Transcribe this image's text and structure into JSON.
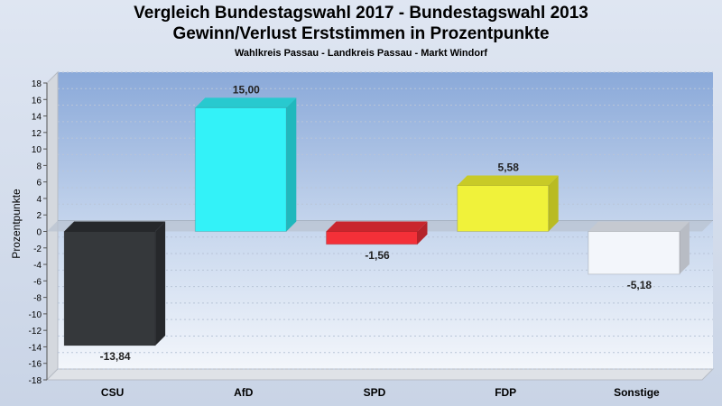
{
  "header": {
    "title": "Vergleich Bundestagswahl 2017 - Bundestagswahl 2013",
    "subtitle": "Gewinn/Verlust Erststimmen in Prozentpunkte",
    "caption": "Wahlkreis Passau - Landkreis Passau - Markt Windorf"
  },
  "chart_data": {
    "type": "bar",
    "title": "Vergleich Bundestagswahl 2017 - Bundestagswahl 2013",
    "subtitle": "Gewinn/Verlust Erststimmen in Prozentpunkte",
    "ylabel": "Prozentpunkte",
    "xlabel": "",
    "categories": [
      "CSU",
      "AfD",
      "SPD",
      "FDP",
      "Sonstige"
    ],
    "values": [
      -13.84,
      15.0,
      -1.56,
      5.58,
      -5.18
    ],
    "value_labels": [
      "-13,84",
      "15,00",
      "-1,56",
      "5,58",
      "-5,18"
    ],
    "colors": [
      "#35383b",
      "#33f2f8",
      "#f43038",
      "#f0f23a",
      "#f3f6fb"
    ],
    "side_colors": [
      "#26282b",
      "#20b8bd",
      "#b4232a",
      "#b9bb22",
      "#b8bcc4"
    ],
    "top_colors": [
      "#26282b",
      "#28c9cf",
      "#c9262d",
      "#c8ca27",
      "#c5c9d0"
    ],
    "ylim": [
      -18,
      18
    ],
    "yticks": [
      18,
      16,
      14,
      12,
      10,
      8,
      6,
      4,
      2,
      0,
      -2,
      -4,
      -6,
      -8,
      -10,
      -12,
      -14,
      -16,
      -18
    ],
    "grid": true,
    "legend": "none"
  }
}
